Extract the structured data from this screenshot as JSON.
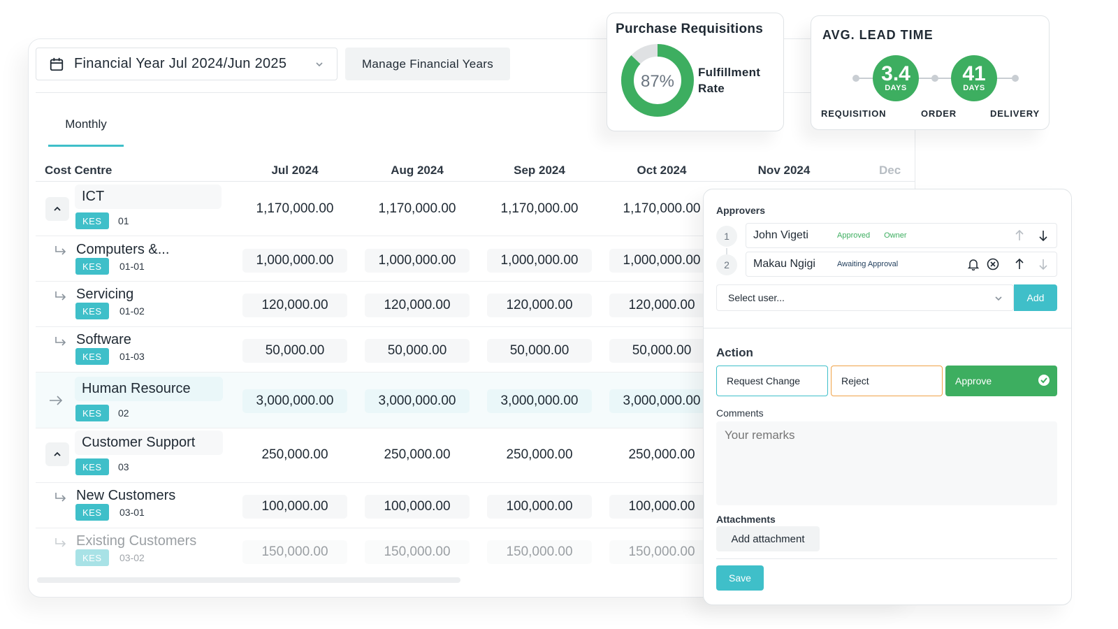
{
  "header": {
    "financial_year": "Financial Year Jul 2024/Jun 2025",
    "manage_button": "Manage Financial Years",
    "tab": "Monthly"
  },
  "table": {
    "columns": [
      "Cost Centre",
      "Jul 2024",
      "Aug 2024",
      "Sep 2024",
      "Oct 2024",
      "Nov 2024",
      "Dec"
    ],
    "rows": [
      {
        "name": "ICT",
        "currency": "KES",
        "code": "01",
        "values": [
          "1,170,000.00",
          "1,170,000.00",
          "1,170,000.00",
          "1,170,000.00"
        ]
      },
      {
        "name": "Computers &...",
        "currency": "KES",
        "code": "01-01",
        "values": [
          "1,000,000.00",
          "1,000,000.00",
          "1,000,000.00",
          "1,000,000.00"
        ]
      },
      {
        "name": "Servicing",
        "currency": "KES",
        "code": "01-02",
        "values": [
          "120,000.00",
          "120,000.00",
          "120,000.00",
          "120,000.00"
        ]
      },
      {
        "name": "Software",
        "currency": "KES",
        "code": "01-03",
        "values": [
          "50,000.00",
          "50,000.00",
          "50,000.00",
          "50,000.00"
        ]
      },
      {
        "name": "Human Resource",
        "currency": "KES",
        "code": "02",
        "values": [
          "3,000,000.00",
          "3,000,000.00",
          "3,000,000.00",
          "3,000,000.00"
        ]
      },
      {
        "name": "Customer Support",
        "currency": "KES",
        "code": "03",
        "values": [
          "250,000.00",
          "250,000.00",
          "250,000.00",
          "250,000.00"
        ]
      },
      {
        "name": "New Customers",
        "currency": "KES",
        "code": "03-01",
        "values": [
          "100,000.00",
          "100,000.00",
          "100,000.00",
          "100,000.00"
        ]
      },
      {
        "name": "Existing Customers",
        "currency": "KES",
        "code": "03-02",
        "values": [
          "150,000.00",
          "150,000.00",
          "150,000.00",
          "150,000.00"
        ]
      }
    ]
  },
  "purchase_requisitions": {
    "title": "Purchase Requisitions",
    "percent_label": "87%",
    "fulfillment_fraction": 0.87,
    "label_line1": "Fulfillment",
    "label_line2": "Rate"
  },
  "lead_time": {
    "title": "AVG. LEAD TIME",
    "first_value": "3.4",
    "first_unit": "DAYS",
    "second_value": "41",
    "second_unit": "DAYS",
    "stages": [
      "REQUISITION",
      "ORDER",
      "DELIVERY"
    ]
  },
  "approvals": {
    "title": "Approvers",
    "approvers": [
      {
        "step": "1",
        "name": "John Vigeti",
        "status": "Approved",
        "role": "Owner"
      },
      {
        "step": "2",
        "name": "Makau Ngigi",
        "status": "Awaiting Approval",
        "role": ""
      }
    ],
    "select_placeholder": "Select user...",
    "add_button": "Add",
    "action_title": "Action",
    "request_change": "Request Change",
    "reject": "Reject",
    "approve": "Approve",
    "comments_label": "Comments",
    "comments_placeholder": "Your remarks",
    "attachments_label": "Attachments",
    "add_attachment": "Add attachment",
    "save": "Save"
  },
  "colors": {
    "accent": "#3fbfc9",
    "success": "#3dae60",
    "warning": "#f0a247",
    "donut_track": "#dfe1e3"
  },
  "icons": [
    "calendar-icon",
    "chevron-down-icon",
    "chevron-up-icon",
    "sub-item-arrow-icon",
    "arrow-right-icon",
    "arrow-up-icon",
    "arrow-down-icon",
    "bell-icon",
    "remove-circle-icon",
    "check-circle-icon"
  ]
}
